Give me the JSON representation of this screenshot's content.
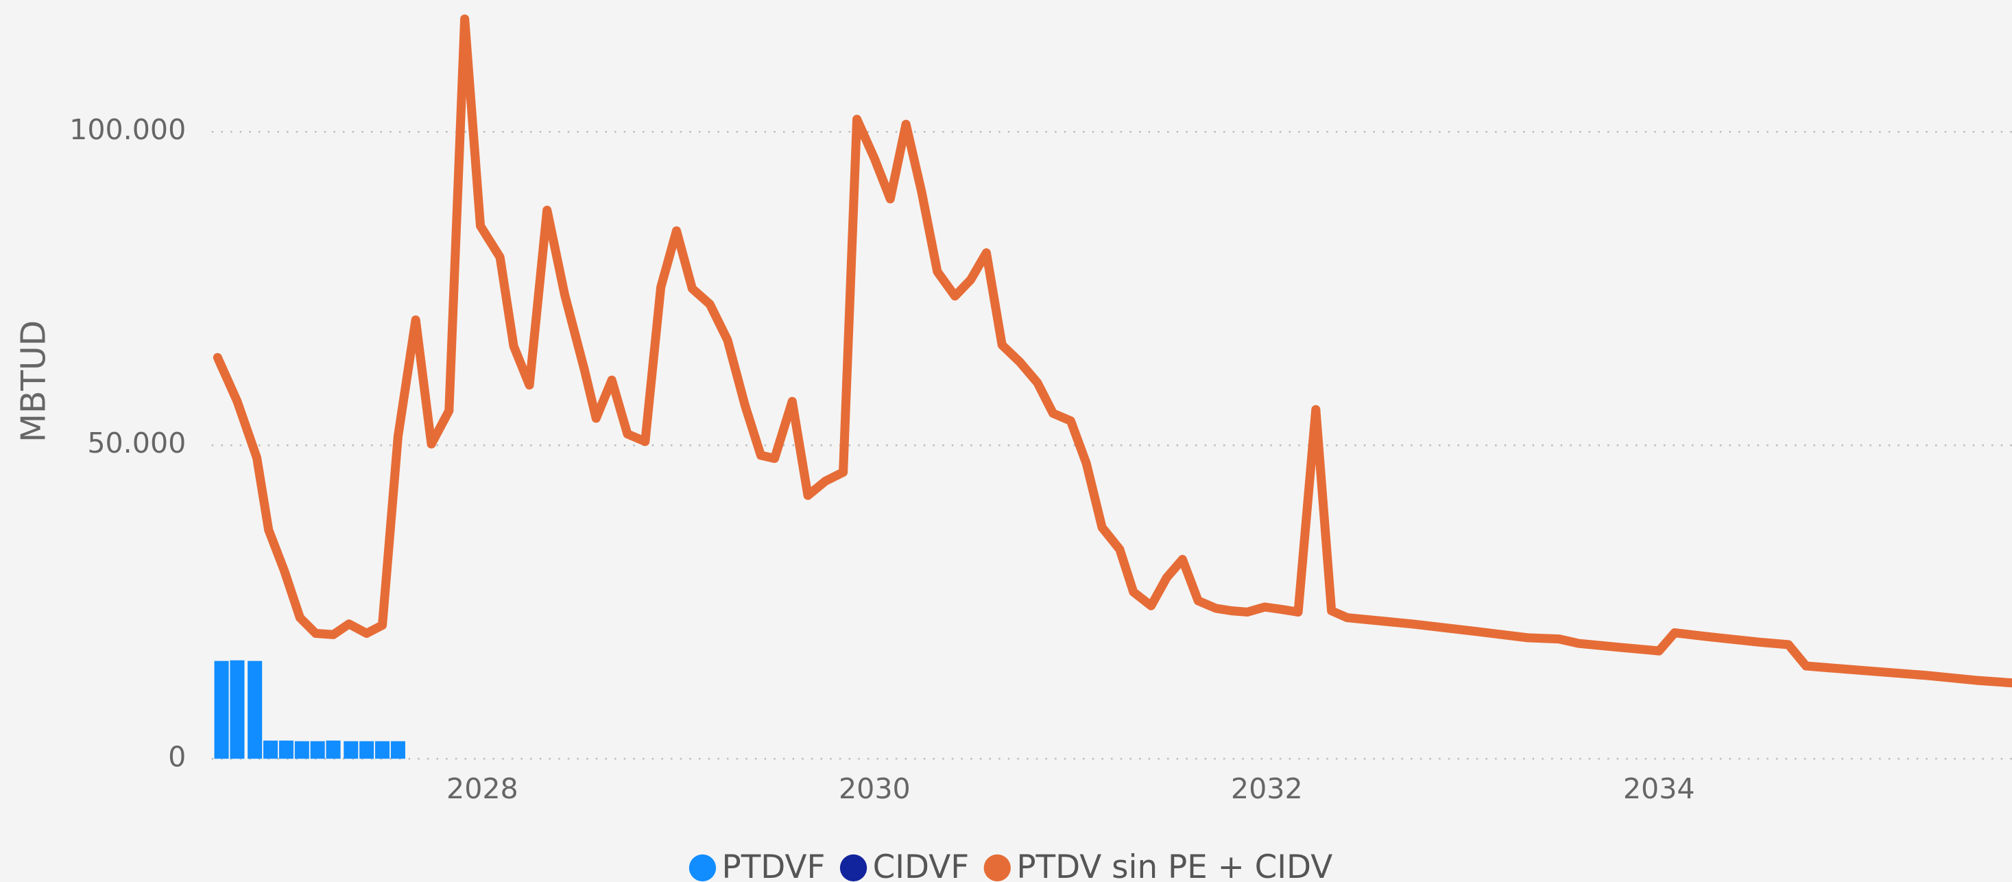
{
  "chart_data": {
    "type": "combo",
    "y_label": "MBTUD",
    "xlim": [
      2026.62,
      2035.8
    ],
    "xticks": [
      2028,
      2030,
      2032,
      2034
    ],
    "ylim": [
      0,
      120000
    ],
    "yticks": [
      0,
      {
        "value": 50000,
        "label": "50.000"
      },
      {
        "value": 100000,
        "label": "100.000"
      }
    ],
    "grid": true,
    "legend": "bottom",
    "series": [
      {
        "name": "PTDVF",
        "color": "#118DFF",
        "type": "bar",
        "x": [
          2026.67,
          2026.75,
          2026.84,
          2026.92,
          2027.0,
          2027.08,
          2027.16,
          2027.24,
          2027.33,
          2027.41,
          2027.49,
          2027.57
        ],
        "values": [
          15600,
          15700,
          15600,
          2900,
          2900,
          2800,
          2800,
          2900,
          2800,
          2800,
          2800,
          2800
        ]
      },
      {
        "name": "CIDVF",
        "color": "#12239E"
      },
      {
        "name": "PTDV sin PE + CIDV",
        "color": "#E66C37",
        "type": "line",
        "x": [
          2026.65,
          2026.75,
          2026.85,
          2026.91,
          2026.99,
          2027.07,
          2027.15,
          2027.24,
          2027.32,
          2027.41,
          2027.49,
          2027.57,
          2027.66,
          2027.74,
          2027.83,
          2027.91,
          2027.99,
          2028.09,
          2028.16,
          2028.24,
          2028.33,
          2028.42,
          2028.52,
          2028.58,
          2028.66,
          2028.74,
          2028.83,
          2028.91,
          2028.99,
          2029.07,
          2029.16,
          2029.25,
          2029.34,
          2029.42,
          2029.49,
          2029.58,
          2029.66,
          2029.75,
          2029.84,
          2029.91,
          2030.0,
          2030.08,
          2030.16,
          2030.24,
          2030.32,
          2030.41,
          2030.49,
          2030.57,
          2030.65,
          2030.74,
          2030.83,
          2030.91,
          2031.0,
          2031.08,
          2031.16,
          2031.25,
          2031.32,
          2031.41,
          2031.49,
          2031.57,
          2031.65,
          2031.74,
          2031.82,
          2031.9,
          2031.99,
          2032.08,
          2032.16,
          2032.25,
          2032.33,
          2032.41,
          2032.74,
          2033.07,
          2033.33,
          2033.49,
          2033.59,
          2033.79,
          2034.0,
          2034.08,
          2034.24,
          2034.51,
          2034.66,
          2034.75,
          2035.03,
          2035.36,
          2035.62,
          2035.8
        ],
        "values": [
          64000,
          57000,
          48000,
          36500,
          30000,
          22500,
          20000,
          19800,
          21500,
          20000,
          21300,
          51400,
          70000,
          50200,
          55500,
          118000,
          85000,
          80000,
          65800,
          59600,
          87500,
          74000,
          62100,
          54300,
          60400,
          51800,
          50600,
          75200,
          84200,
          75000,
          72500,
          66800,
          56300,
          48400,
          47900,
          57000,
          42000,
          44300,
          45700,
          102000,
          95700,
          89300,
          101200,
          90400,
          77700,
          73800,
          76400,
          80700,
          66000,
          63300,
          60000,
          55100,
          53900,
          47100,
          36900,
          33400,
          26600,
          24400,
          28900,
          31800,
          25200,
          24000,
          23600,
          23400,
          24200,
          23800,
          23400,
          55700,
          23600,
          22500,
          21500,
          20300,
          19300,
          19100,
          18400,
          17800,
          17200,
          20100,
          19500,
          18600,
          18200,
          14800,
          14100,
          13300,
          12500,
          12100
        ]
      }
    ]
  }
}
